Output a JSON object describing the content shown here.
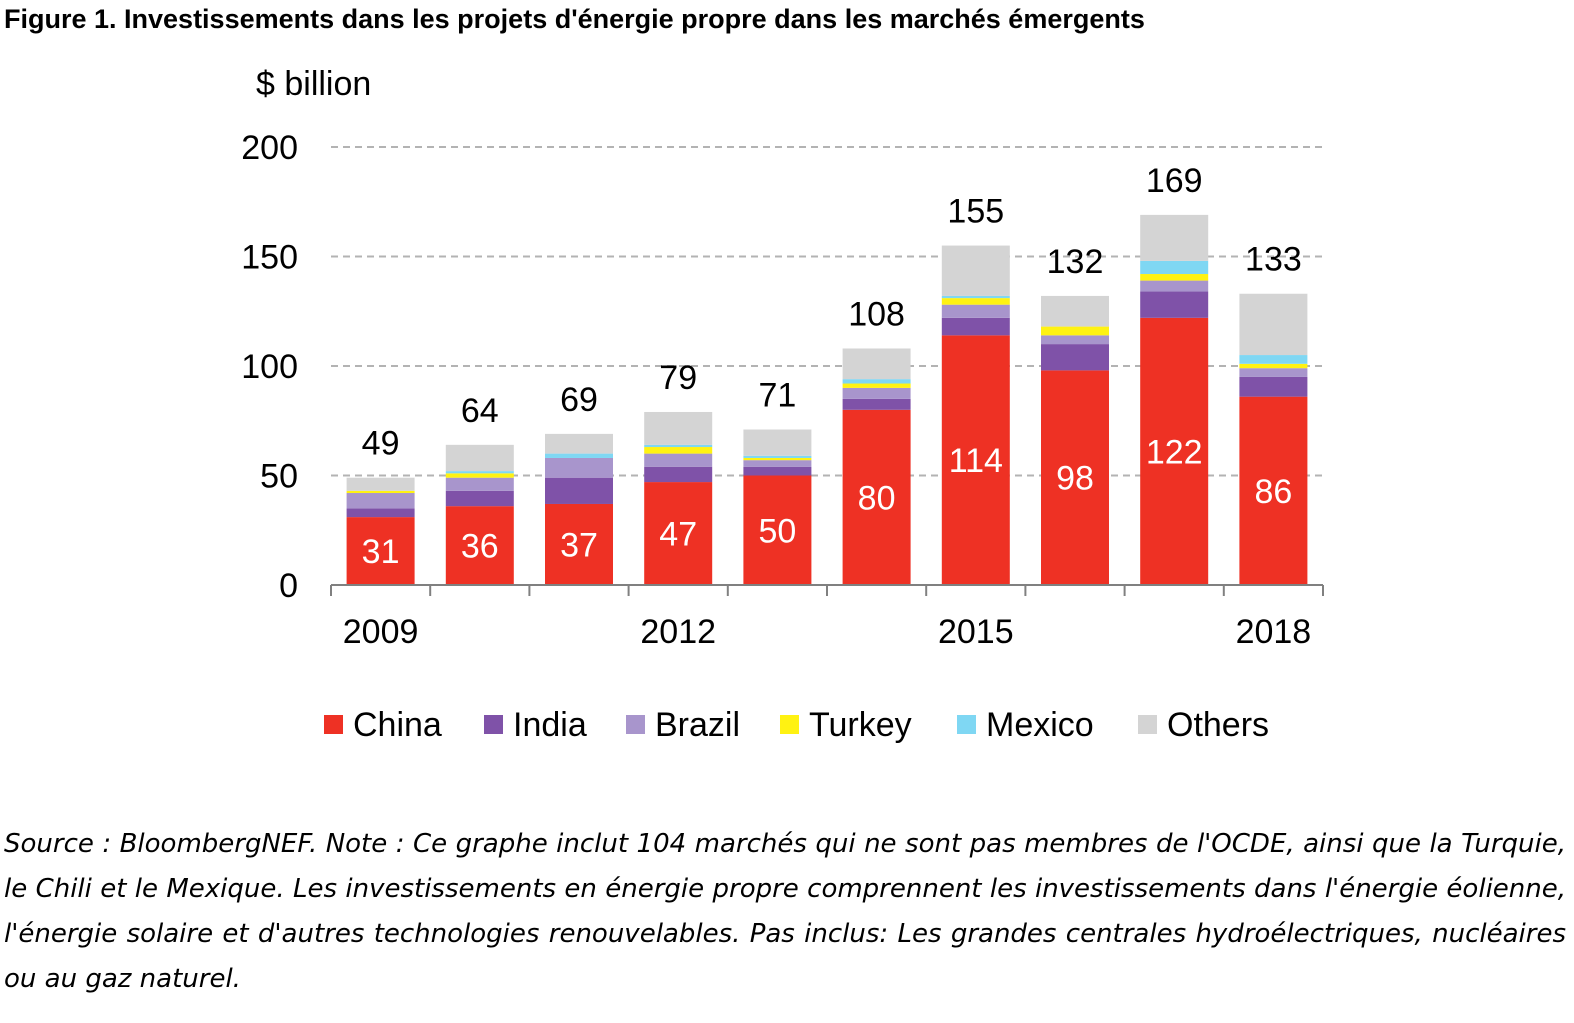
{
  "figure_title": "Figure 1. Investissements dans les projets d'énergie propre dans les marchés émergents",
  "note": "Source : BloombergNEF. Note : Ce graphe inclut 104 marchés qui ne sont pas membres de l'OCDE, ainsi que la Turquie, le Chili et le Mexique. Les investissements en énergie propre comprennent les investissements dans l'énergie éolienne, l'énergie solaire et d'autres technologies renouvelables. Pas inclus: Les grandes centrales hydroélectriques, nucléaires ou au gaz naturel.",
  "chart_data": {
    "type": "bar",
    "stacked": true,
    "ylabel": "$ billion",
    "ylim": [
      0,
      200
    ],
    "yticks": [
      0,
      50,
      100,
      150,
      200
    ],
    "grid": true,
    "legend_position": "bottom",
    "categories": [
      2009,
      2010,
      2011,
      2012,
      2013,
      2014,
      2015,
      2016,
      2017,
      2018
    ],
    "xtick_labels": [
      "2009",
      "",
      "",
      "2012",
      "",
      "",
      "2015",
      "",
      "",
      "2018"
    ],
    "totals": [
      49,
      64,
      69,
      79,
      71,
      108,
      155,
      132,
      169,
      133
    ],
    "series": [
      {
        "name": "China",
        "color": "#ee3124",
        "values": [
          31,
          36,
          37,
          47,
          50,
          80,
          114,
          98,
          122,
          86
        ]
      },
      {
        "name": "India",
        "color": "#7f52a8",
        "values": [
          4,
          7,
          12,
          7,
          4,
          5,
          8,
          12,
          12,
          9
        ]
      },
      {
        "name": "Brazil",
        "color": "#a895cc",
        "values": [
          7,
          6,
          9,
          6,
          3,
          5,
          6,
          4,
          5,
          4
        ]
      },
      {
        "name": "Turkey",
        "color": "#fff212",
        "values": [
          1,
          2,
          0,
          3,
          1,
          2,
          3,
          4,
          3,
          2
        ]
      },
      {
        "name": "Mexico",
        "color": "#7fd7f3",
        "values": [
          0,
          1,
          2,
          1,
          1,
          2,
          1,
          0,
          6,
          4
        ]
      },
      {
        "name": "Others",
        "color": "#d4d4d4",
        "values": [
          6,
          12,
          9,
          15,
          12,
          14,
          23,
          14,
          21,
          28
        ]
      }
    ]
  }
}
